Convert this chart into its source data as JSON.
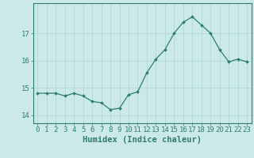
{
  "x": [
    0,
    1,
    2,
    3,
    4,
    5,
    6,
    7,
    8,
    9,
    10,
    11,
    12,
    13,
    14,
    15,
    16,
    17,
    18,
    19,
    20,
    21,
    22,
    23
  ],
  "y": [
    14.8,
    14.8,
    14.8,
    14.7,
    14.8,
    14.7,
    14.5,
    14.45,
    14.2,
    14.25,
    14.75,
    14.85,
    15.55,
    16.05,
    16.4,
    17.0,
    17.4,
    17.6,
    17.3,
    17.0,
    16.4,
    15.95,
    16.05,
    15.95
  ],
  "line_color": "#2e7d6e",
  "marker": "D",
  "marker_size": 2.0,
  "bg_color": "#cce9ea",
  "grid_color": "#aad4d5",
  "tick_color": "#2e7d6e",
  "spine_color": "#2e7d6e",
  "xlabel": "Humidex (Indice chaleur)",
  "ylim": [
    13.7,
    18.1
  ],
  "yticks": [
    14,
    15,
    16,
    17
  ],
  "xticks": [
    0,
    1,
    2,
    3,
    4,
    5,
    6,
    7,
    8,
    9,
    10,
    11,
    12,
    13,
    14,
    15,
    16,
    17,
    18,
    19,
    20,
    21,
    22,
    23
  ],
  "label_fontsize": 7.5,
  "tick_fontsize": 6.5
}
